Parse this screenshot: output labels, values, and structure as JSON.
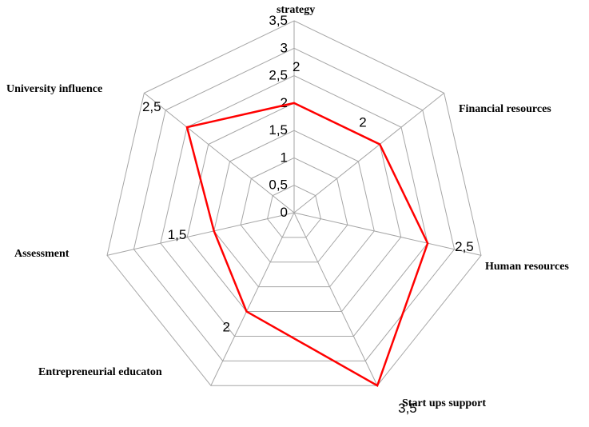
{
  "chart_data": {
    "type": "radar",
    "categories": [
      "strategy",
      "Financial resources",
      "Human resources",
      "Start ups support",
      "Entrepreneurial educaton",
      "Assessment",
      "University influence"
    ],
    "values": [
      2,
      2,
      2.5,
      3.5,
      2,
      1.5,
      2.5
    ],
    "data_labels": [
      "2",
      "2",
      "2,5",
      "3,5",
      "2",
      "1,5",
      "2,5"
    ],
    "tick_labels": [
      "0",
      "0,5",
      "1",
      "1,5",
      "2",
      "2,5",
      "3",
      "3,5"
    ],
    "rlim": [
      0,
      3.5
    ],
    "series_color": "#ff0000",
    "grid": true
  }
}
